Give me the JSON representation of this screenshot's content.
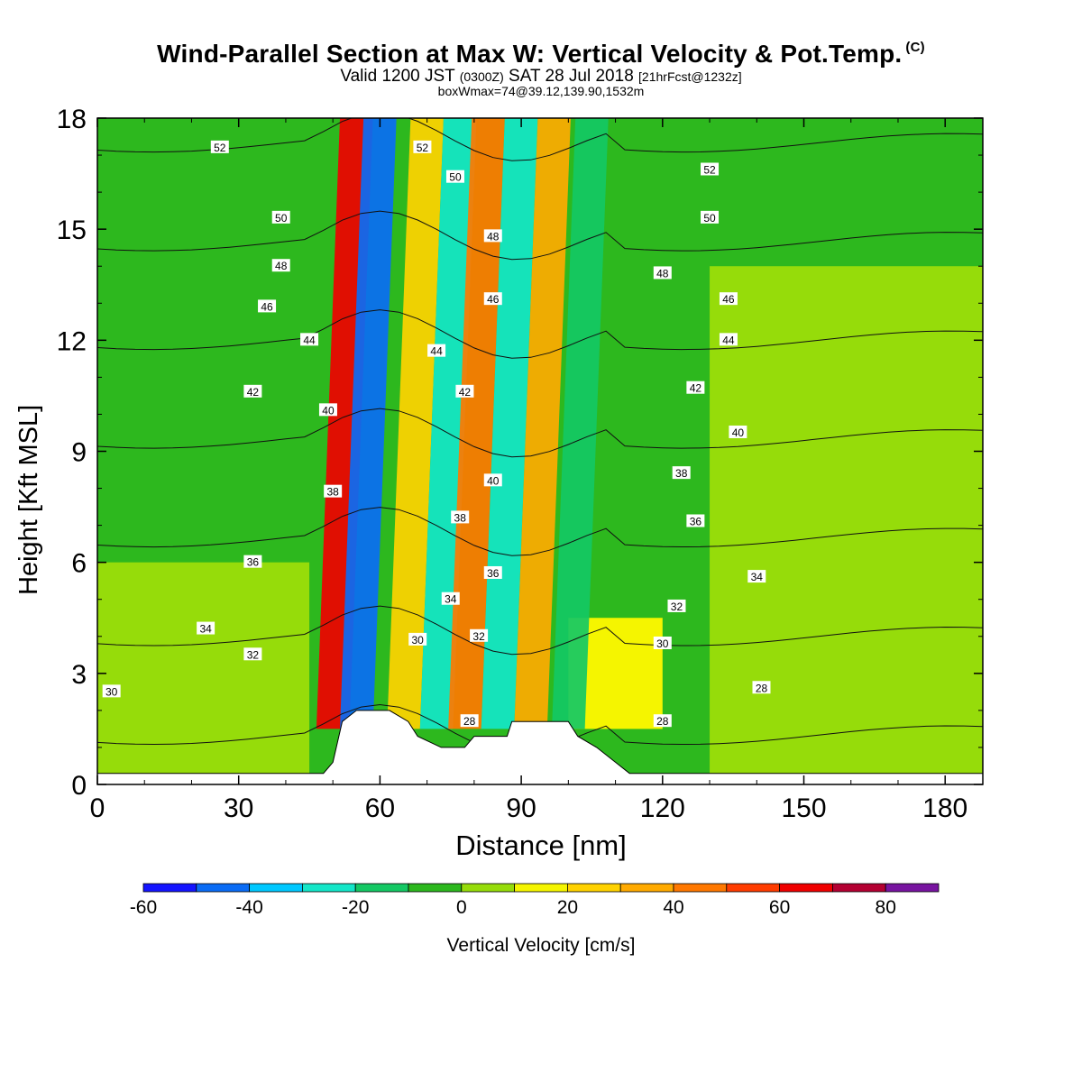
{
  "header": {
    "title": "Wind-Parallel Section at Max W: Vertical Velocity & Pot.Temp.",
    "title_mark": "(C)",
    "valid_prefix": "Valid 1200 JST",
    "valid_utc": "(0300Z)",
    "valid_date": "SAT 28 Jul 2018",
    "forecast": "[21hrFcst@1232z]",
    "box_info": "boxWmax=74@39.12,139.90,1532m"
  },
  "chart_data": {
    "type": "heatmap",
    "title": "Wind-Parallel Section at Max W: Vertical Velocity & Pot.Temp.",
    "xlabel": "Distance [nm]",
    "ylabel": "Height [Kft MSL]",
    "xlim": [
      0,
      188
    ],
    "ylim": [
      0,
      18
    ],
    "x_ticks": [
      "0",
      "30",
      "60",
      "90",
      "120",
      "150",
      "180"
    ],
    "y_ticks": [
      "0",
      "3",
      "6",
      "9",
      "12",
      "15",
      "18"
    ],
    "colorbar": {
      "label": "Vertical Velocity [cm/s]",
      "bounds": [
        -60,
        -50,
        -40,
        -30,
        -20,
        -10,
        0,
        10,
        20,
        30,
        40,
        50,
        60,
        70,
        80,
        90
      ],
      "tick_labels": [
        "-60",
        "-40",
        "-20",
        "0",
        "20",
        "40",
        "60",
        "80"
      ],
      "colors": [
        "#1414ff",
        "#0a6cf5",
        "#00c8ff",
        "#14e6c8",
        "#14c864",
        "#2db81e",
        "#96dc0a",
        "#f5f500",
        "#ffd200",
        "#ffaa00",
        "#ff7800",
        "#ff3c00",
        "#f00000",
        "#b40032",
        "#7814a0"
      ]
    },
    "vertical_velocity_bands": [
      {
        "x": 50,
        "y0": 1.5,
        "y1": 18,
        "value": 65,
        "slant_x": 5
      },
      {
        "x": 55,
        "y0": 1.5,
        "y1": 18,
        "value": -50,
        "slant_x": 5
      },
      {
        "x": 65,
        "y0": 1.5,
        "y1": 18,
        "value": 25,
        "slant_x": 5
      },
      {
        "x": 72,
        "y0": 1.5,
        "y1": 18,
        "value": -30,
        "slant_x": 5
      },
      {
        "x": 78,
        "y0": 1.5,
        "y1": 18,
        "value": 45,
        "slant_x": 5
      },
      {
        "x": 85,
        "y0": 1.5,
        "y1": 18,
        "value": -25,
        "slant_x": 5
      },
      {
        "x": 92,
        "y0": 1.5,
        "y1": 18,
        "value": 35,
        "slant_x": 5
      },
      {
        "x": 100,
        "y0": 1.5,
        "y1": 18,
        "value": -15,
        "slant_x": 5
      }
    ],
    "background_regions": [
      {
        "x0": 0,
        "x1": 188,
        "y0": 0,
        "y1": 18,
        "value": -5
      },
      {
        "x0": 0,
        "x1": 45,
        "y0": 0,
        "y1": 6,
        "value": 5
      },
      {
        "x0": 130,
        "x1": 188,
        "y0": 0,
        "y1": 14,
        "value": 5
      },
      {
        "x0": 100,
        "x1": 120,
        "y0": 1.5,
        "y1": 4.5,
        "value": 15
      }
    ],
    "terrain": [
      [
        0,
        0.3
      ],
      [
        48,
        0.3
      ],
      [
        50,
        0.6
      ],
      [
        52,
        1.7
      ],
      [
        55,
        2.0
      ],
      [
        62,
        2.0
      ],
      [
        66,
        1.7
      ],
      [
        68,
        1.3
      ],
      [
        73,
        1.0
      ],
      [
        78,
        1.0
      ],
      [
        80,
        1.3
      ],
      [
        87,
        1.3
      ],
      [
        88,
        1.7
      ],
      [
        100,
        1.7
      ],
      [
        102,
        1.3
      ],
      [
        106,
        1.0
      ],
      [
        110,
        0.6
      ],
      [
        113,
        0.3
      ],
      [
        188,
        0.3
      ]
    ],
    "isentropes": {
      "levels": [
        28,
        30,
        32,
        34,
        36,
        38,
        40,
        42,
        44,
        46,
        48,
        50,
        52
      ],
      "labels": [
        {
          "text": "52",
          "x": 26,
          "y": 17.2
        },
        {
          "text": "52",
          "x": 69,
          "y": 17.2
        },
        {
          "text": "52",
          "x": 130,
          "y": 16.6
        },
        {
          "text": "50",
          "x": 39,
          "y": 15.3
        },
        {
          "text": "50",
          "x": 76,
          "y": 16.4
        },
        {
          "text": "50",
          "x": 130,
          "y": 15.3
        },
        {
          "text": "48",
          "x": 39,
          "y": 14.0
        },
        {
          "text": "48",
          "x": 84,
          "y": 14.8
        },
        {
          "text": "48",
          "x": 120,
          "y": 13.8
        },
        {
          "text": "46",
          "x": 36,
          "y": 12.9
        },
        {
          "text": "46",
          "x": 84,
          "y": 13.1
        },
        {
          "text": "46",
          "x": 134,
          "y": 13.1
        },
        {
          "text": "44",
          "x": 45,
          "y": 12.0
        },
        {
          "text": "44",
          "x": 72,
          "y": 11.7
        },
        {
          "text": "44",
          "x": 134,
          "y": 12.0
        },
        {
          "text": "42",
          "x": 33,
          "y": 10.6
        },
        {
          "text": "42",
          "x": 78,
          "y": 10.6
        },
        {
          "text": "42",
          "x": 127,
          "y": 10.7
        },
        {
          "text": "40",
          "x": 49,
          "y": 10.1
        },
        {
          "text": "40",
          "x": 84,
          "y": 8.2
        },
        {
          "text": "40",
          "x": 136,
          "y": 9.5
        },
        {
          "text": "38",
          "x": 50,
          "y": 7.9
        },
        {
          "text": "38",
          "x": 77,
          "y": 7.2
        },
        {
          "text": "38",
          "x": 124,
          "y": 8.4
        },
        {
          "text": "36",
          "x": 33,
          "y": 6.0
        },
        {
          "text": "36",
          "x": 84,
          "y": 5.7
        },
        {
          "text": "36",
          "x": 127,
          "y": 7.1
        },
        {
          "text": "34",
          "x": 23,
          "y": 4.2
        },
        {
          "text": "34",
          "x": 75,
          "y": 5.0
        },
        {
          "text": "34",
          "x": 140,
          "y": 5.6
        },
        {
          "text": "32",
          "x": 33,
          "y": 3.5
        },
        {
          "text": "32",
          "x": 81,
          "y": 4.0
        },
        {
          "text": "32",
          "x": 123,
          "y": 4.8
        },
        {
          "text": "30",
          "x": 3,
          "y": 2.5
        },
        {
          "text": "30",
          "x": 68,
          "y": 3.9
        },
        {
          "text": "30",
          "x": 120,
          "y": 3.8
        },
        {
          "text": "28",
          "x": 79,
          "y": 1.7
        },
        {
          "text": "28",
          "x": 120,
          "y": 1.7
        },
        {
          "text": "28",
          "x": 141,
          "y": 2.6
        }
      ]
    },
    "grid": false
  }
}
